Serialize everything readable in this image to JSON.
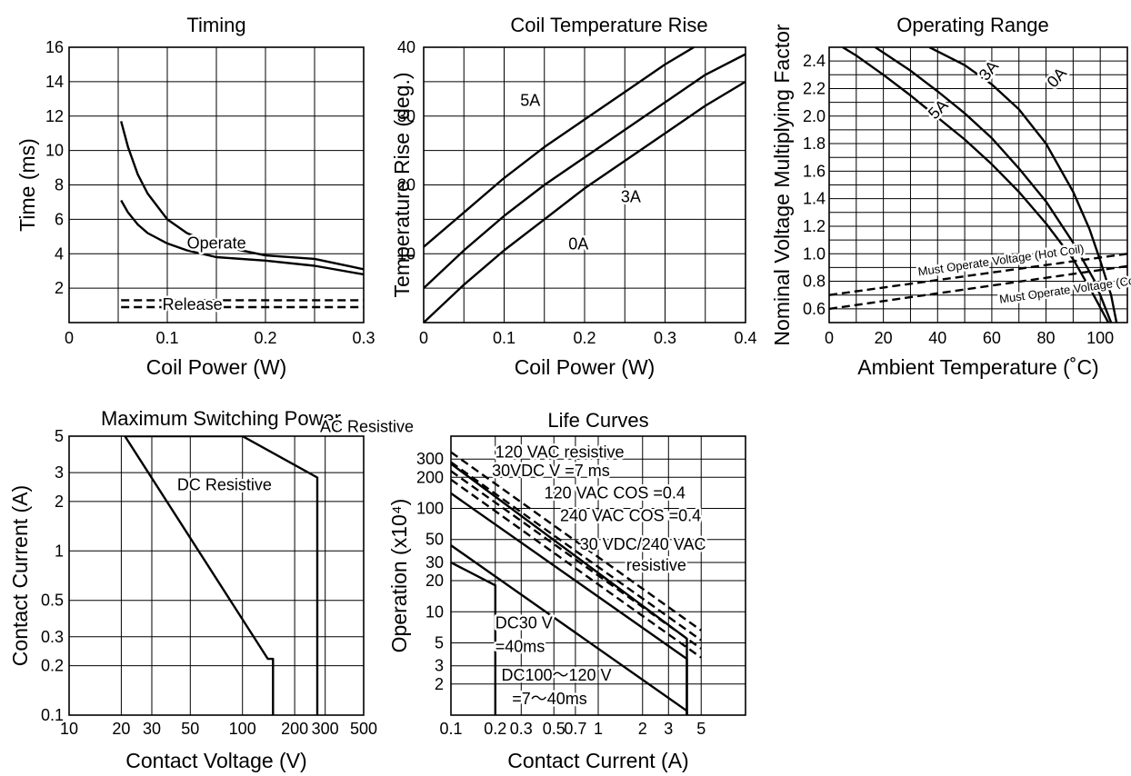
{
  "chart_data": [
    {
      "id": "timing",
      "type": "line",
      "title": "Timing",
      "xlabel": "Coil Power (W)",
      "ylabel": "Time (ms)",
      "xlim": [
        0,
        0.3
      ],
      "ylim": [
        0,
        16
      ],
      "xticks": [
        0,
        0.1,
        0.2,
        0.3
      ],
      "xtick_labels": [
        "0",
        "0.1",
        "0.2",
        "0.3"
      ],
      "yticks": [
        2,
        4,
        6,
        8,
        10,
        12,
        14,
        16
      ],
      "ytick_labels": [
        "2",
        "4",
        "6",
        "8",
        "10",
        "12",
        "14",
        "16"
      ],
      "xgrid": [
        0.05,
        0.1,
        0.15,
        0.2,
        0.25
      ],
      "ygrid": [
        2,
        4,
        6,
        8,
        10,
        12,
        14
      ],
      "grid": true,
      "series": [
        {
          "name": "Operate",
          "style": "solid",
          "x": [
            0.053,
            0.06,
            0.07,
            0.08,
            0.1,
            0.12,
            0.15,
            0.2,
            0.25,
            0.3
          ],
          "y": [
            11.7,
            10.2,
            8.6,
            7.5,
            6.0,
            5.2,
            4.5,
            3.9,
            3.7,
            3.1
          ]
        },
        {
          "name": "",
          "style": "solid",
          "x": [
            0.053,
            0.06,
            0.07,
            0.08,
            0.1,
            0.12,
            0.15,
            0.2,
            0.25,
            0.3
          ],
          "y": [
            7.1,
            6.4,
            5.7,
            5.2,
            4.6,
            4.2,
            3.8,
            3.6,
            3.3,
            2.8
          ]
        },
        {
          "name": "Release",
          "style": "dashed",
          "x": [
            0.053,
            0.3
          ],
          "y": [
            1.3,
            1.3
          ]
        },
        {
          "name": "",
          "style": "dashed",
          "x": [
            0.053,
            0.3
          ],
          "y": [
            0.9,
            0.9
          ]
        }
      ],
      "annotations": [
        {
          "text": "Operate",
          "x": 0.12,
          "y": 4.3
        },
        {
          "text": "Release",
          "x": 0.095,
          "y": 0.75
        }
      ]
    },
    {
      "id": "coil_temp",
      "type": "line",
      "title": "Coil Temperature Rise",
      "xlabel": "Coil Power (W)",
      "ylabel": "Temperature Rise (deg.)",
      "xlim": [
        0,
        0.4
      ],
      "ylim": [
        0,
        40
      ],
      "xticks": [
        0,
        0.1,
        0.2,
        0.3,
        0.4
      ],
      "xtick_labels": [
        "0",
        "0.1",
        "0.2",
        "0.3",
        "0.4"
      ],
      "yticks": [
        10,
        20,
        30,
        40
      ],
      "ytick_labels": [
        "10",
        "20",
        "30",
        "40"
      ],
      "xgrid": [
        0.05,
        0.1,
        0.15,
        0.2,
        0.25,
        0.3,
        0.35
      ],
      "ygrid": [
        5,
        10,
        15,
        20,
        25,
        30,
        35
      ],
      "grid": true,
      "series": [
        {
          "name": "5A",
          "style": "solid",
          "x": [
            0,
            0.05,
            0.1,
            0.15,
            0.2,
            0.25,
            0.3,
            0.35,
            0.4
          ],
          "y": [
            11,
            16,
            21,
            25.5,
            29.5,
            33.5,
            37.5,
            41,
            44
          ]
        },
        {
          "name": "3A",
          "style": "solid",
          "x": [
            0,
            0.05,
            0.1,
            0.15,
            0.2,
            0.25,
            0.3,
            0.35,
            0.4
          ],
          "y": [
            5,
            10.5,
            15.5,
            20,
            24,
            28,
            32,
            36,
            39
          ]
        },
        {
          "name": "0A",
          "style": "solid",
          "x": [
            0,
            0.05,
            0.1,
            0.15,
            0.2,
            0.25,
            0.3,
            0.35,
            0.4
          ],
          "y": [
            0,
            5.5,
            10.5,
            15,
            19.5,
            23.5,
            27.5,
            31.5,
            35
          ]
        }
      ],
      "annotations": [
        {
          "text": "5A",
          "x": 0.12,
          "y": 31.5
        },
        {
          "text": "3A",
          "x": 0.245,
          "y": 17.5
        },
        {
          "text": "0A",
          "x": 0.18,
          "y": 10.6
        }
      ]
    },
    {
      "id": "operating_range",
      "type": "line",
      "title": "Operating Range",
      "xlabel": "Ambient Temperature (˚C)",
      "ylabel": "Nominal Voltage Multiplying Factor",
      "xlim": [
        0,
        110
      ],
      "ylim": [
        0.5,
        2.5
      ],
      "xticks": [
        0,
        20,
        40,
        60,
        80,
        100
      ],
      "xtick_labels": [
        "0",
        "20",
        "40",
        "60",
        "80",
        "100"
      ],
      "yticks": [
        0.6,
        0.8,
        1.0,
        1.2,
        1.4,
        1.6,
        1.8,
        2.0,
        2.2,
        2.4
      ],
      "ytick_labels": [
        "0.6",
        "0.8",
        "1.0",
        "1.2",
        "1.4",
        "1.6",
        "1.8",
        "2.0",
        "2.2",
        "2.4"
      ],
      "xgrid": [
        10,
        20,
        30,
        40,
        50,
        60,
        70,
        80,
        90,
        100
      ],
      "ygrid": [
        0.6,
        0.7,
        0.8,
        0.9,
        1.0,
        1.1,
        1.2,
        1.3,
        1.4,
        1.5,
        1.6,
        1.7,
        1.8,
        1.9,
        2.0,
        2.1,
        2.2,
        2.3,
        2.4
      ],
      "grid": true,
      "series": [
        {
          "name": "0A",
          "style": "solid",
          "x": [
            37,
            50,
            60,
            70,
            80,
            90,
            96,
            100,
            104,
            106
          ],
          "y": [
            2.5,
            2.37,
            2.23,
            2.05,
            1.8,
            1.45,
            1.18,
            0.95,
            0.7,
            0.5
          ]
        },
        {
          "name": "3A",
          "style": "solid",
          "x": [
            17,
            30,
            40,
            50,
            60,
            70,
            80,
            90,
            98,
            104
          ],
          "y": [
            2.5,
            2.33,
            2.18,
            2.02,
            1.84,
            1.62,
            1.38,
            1.08,
            0.8,
            0.5
          ]
        },
        {
          "name": "5A",
          "style": "solid",
          "x": [
            5,
            10,
            20,
            30,
            40,
            50,
            60,
            70,
            80,
            90,
            97,
            103
          ],
          "y": [
            2.5,
            2.44,
            2.3,
            2.15,
            1.99,
            1.83,
            1.65,
            1.45,
            1.22,
            0.96,
            0.72,
            0.5
          ]
        },
        {
          "name": "Must Operate Voltage (Hot Coil)",
          "style": "dashed",
          "x": [
            0,
            110
          ],
          "y": [
            0.7,
            1.0
          ]
        },
        {
          "name": "Must Operate Voltage (Cool Coil)",
          "style": "dashed",
          "x": [
            0,
            110
          ],
          "y": [
            0.6,
            0.91
          ]
        }
      ],
      "annotations": [
        {
          "text": "0A",
          "x": 83,
          "y": 2.2,
          "angle": -48
        },
        {
          "text": "3A",
          "x": 58,
          "y": 2.25,
          "angle": -50
        },
        {
          "text": "5A",
          "x": 39,
          "y": 1.97,
          "angle": -45
        },
        {
          "text": "Must Operate Voltage (Hot Coil)",
          "x": 33,
          "y": 0.84,
          "angle": -8
        },
        {
          "text": "Must Operate Voltage (Cool Coil)",
          "x": 63,
          "y": 0.64,
          "angle": -8
        }
      ]
    },
    {
      "id": "max_switching",
      "type": "line",
      "title": "Maximum Switching Power",
      "xlabel": "Contact Voltage (V)",
      "ylabel": "Contact Current (A)",
      "xscale": "log",
      "yscale": "log",
      "xlim": [
        10,
        500
      ],
      "ylim": [
        0.1,
        5
      ],
      "xticks": [
        10,
        20,
        30,
        50,
        100,
        200,
        300,
        500
      ],
      "xtick_labels": [
        "10",
        "20",
        "30",
        "50",
        "100",
        "200",
        "300",
        "500"
      ],
      "yticks": [
        0.1,
        0.2,
        0.3,
        0.5,
        1,
        2,
        3,
        5
      ],
      "ytick_labels": [
        "0.1",
        "0.2",
        "0.3",
        "0.5",
        "1",
        "2",
        "3",
        "5"
      ],
      "xgrid": [
        20,
        30,
        50,
        100,
        200,
        300
      ],
      "ygrid": [
        0.2,
        0.3,
        0.5,
        1,
        2,
        3,
        5
      ],
      "grid": true,
      "series": [
        {
          "name": "AC Resistive",
          "style": "solid",
          "x": [
            21,
            100,
            270,
            270
          ],
          "y": [
            5,
            5,
            2.8,
            0.1
          ]
        },
        {
          "name": "DC Resistive",
          "style": "solid",
          "x": [
            21,
            140,
            150,
            150
          ],
          "y": [
            5,
            0.22,
            0.22,
            0.1
          ]
        }
      ],
      "annotations": [
        {
          "text": "AC Resistive",
          "x": 280,
          "y": 5.3
        },
        {
          "text": "DC Resistive",
          "x": 42,
          "y": 2.35
        }
      ]
    },
    {
      "id": "life_curves",
      "type": "line",
      "title": "Life Curves",
      "xlabel": "Contact Current (A)",
      "ylabel": "Operation (x10⁴)",
      "xscale": "log",
      "yscale": "log",
      "xlim": [
        0.1,
        10
      ],
      "ylim": [
        1,
        500
      ],
      "xticks": [
        0.1,
        0.2,
        0.3,
        0.5,
        0.7,
        1,
        2,
        3,
        5
      ],
      "xtick_labels": [
        "0.1",
        "0.2",
        "0.3",
        "0.5",
        "0.7",
        "1",
        "2",
        "3",
        "5"
      ],
      "yticks": [
        2,
        3,
        5,
        10,
        20,
        30,
        50,
        100,
        200,
        300
      ],
      "ytick_labels": [
        "2",
        "3",
        "5",
        "10",
        "20",
        "30",
        "50",
        "100",
        "200",
        "300"
      ],
      "xgrid": [
        0.2,
        0.3,
        0.5,
        0.7,
        1,
        2,
        3,
        5
      ],
      "ygrid": [
        2,
        3,
        5,
        10,
        20,
        30,
        50,
        100,
        200,
        300
      ],
      "grid": true,
      "series": [
        {
          "name": "120 VAC resistive",
          "style": "dashed",
          "x": [
            0.1,
            5
          ],
          "y": [
            350,
            6.6
          ]
        },
        {
          "name": "30VDC V =7 ms",
          "style": "dashed",
          "x": [
            0.1,
            5
          ],
          "y": [
            280,
            5.3
          ]
        },
        {
          "name": "120 VAC COS =0.4",
          "style": "dashed",
          "x": [
            0.1,
            5
          ],
          "y": [
            230,
            4.4
          ]
        },
        {
          "name": "240 VAC COS =0.4",
          "style": "dashed",
          "x": [
            0.1,
            5
          ],
          "y": [
            190,
            3.6
          ]
        },
        {
          "name": "30 VDC/240 VAC resistive",
          "style": "solid",
          "x": [
            0.1,
            4,
            4
          ],
          "y": [
            270,
            5.5,
            1
          ]
        },
        {
          "name": "",
          "style": "solid",
          "x": [
            0.1,
            4,
            4
          ],
          "y": [
            140,
            3.5,
            1
          ]
        },
        {
          "name": "DC30 V =40ms",
          "style": "solid",
          "x": [
            0.1,
            4,
            4
          ],
          "y": [
            44,
            1.1,
            1
          ]
        },
        {
          "name": "DC100～120 V =7～40ms",
          "style": "solid",
          "x": [
            0.1,
            0.2,
            0.2
          ],
          "y": [
            30,
            18,
            1
          ]
        }
      ],
      "annotations": [
        {
          "text": "120 VAC resistive",
          "x": 0.2,
          "y": 310
        },
        {
          "text": "30VDC V =7 ms",
          "x": 0.19,
          "y": 205
        },
        {
          "text": "120 VAC COS =0.4",
          "x": 0.43,
          "y": 125
        },
        {
          "text": "240 VAC COS =0.4",
          "x": 0.55,
          "y": 75
        },
        {
          "text": "30 VDC/240 VAC",
          "x": 0.75,
          "y": 40
        },
        {
          "text": "resistive",
          "x": 1.55,
          "y": 25
        },
        {
          "text": "DC30 V",
          "x": 0.2,
          "y": 6.9
        },
        {
          "text": "=40ms",
          "x": 0.2,
          "y": 4.1
        },
        {
          "text": "DC100～120 V",
          "x": 0.22,
          "y": 2.15
        },
        {
          "text": "=7～40ms",
          "x": 0.26,
          "y": 1.27
        }
      ]
    }
  ]
}
